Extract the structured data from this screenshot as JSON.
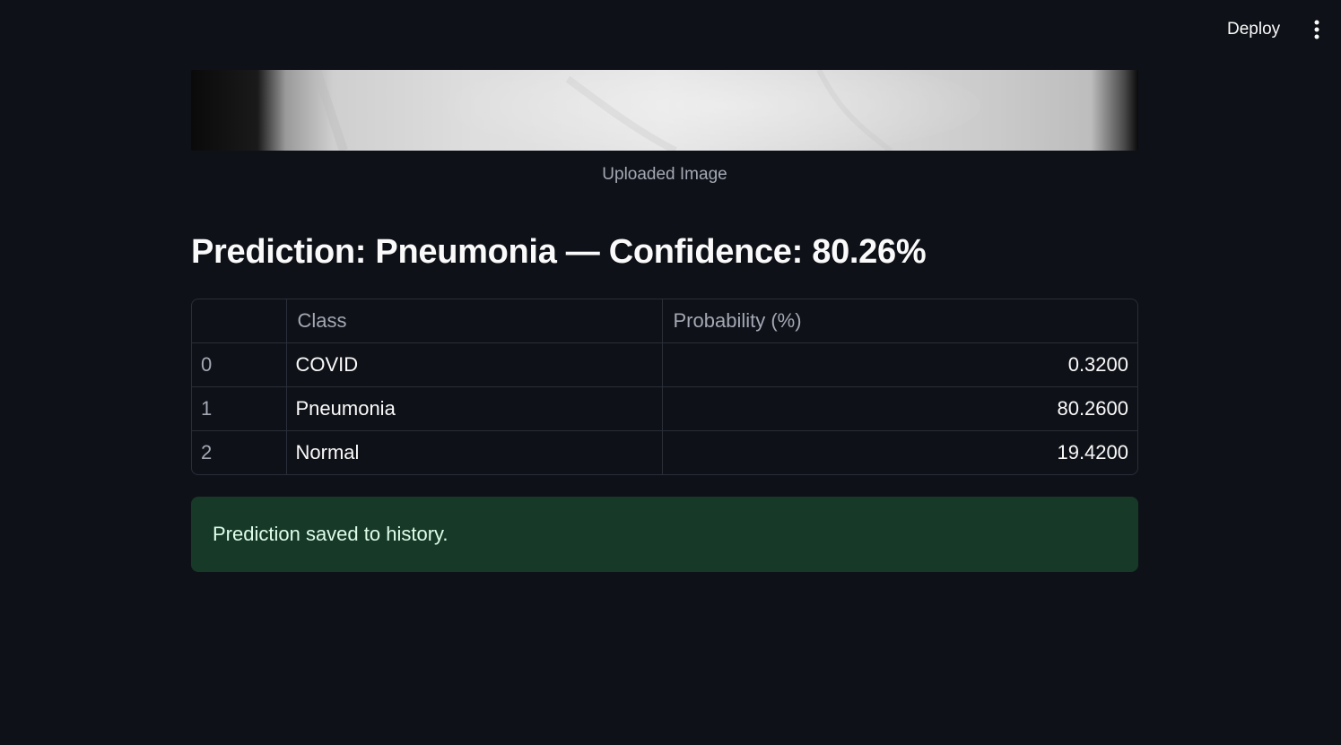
{
  "header": {
    "deploy_label": "Deploy",
    "menu_icon": "more-vertical-icon"
  },
  "upload": {
    "caption": "Uploaded Image"
  },
  "prediction": {
    "title": "Prediction: Pneumonia — Confidence: 80.26%"
  },
  "table": {
    "columns": [
      "",
      "Class",
      "Probability (%)"
    ],
    "rows": [
      {
        "index": "0",
        "class": "COVID",
        "probability": "0.3200"
      },
      {
        "index": "1",
        "class": "Pneumonia",
        "probability": "80.2600"
      },
      {
        "index": "2",
        "class": "Normal",
        "probability": "19.4200"
      }
    ]
  },
  "alert": {
    "message": "Prediction saved to history."
  },
  "colors": {
    "background": "#0e1117",
    "success_bg": "#173928",
    "success_text": "#dffde9"
  }
}
